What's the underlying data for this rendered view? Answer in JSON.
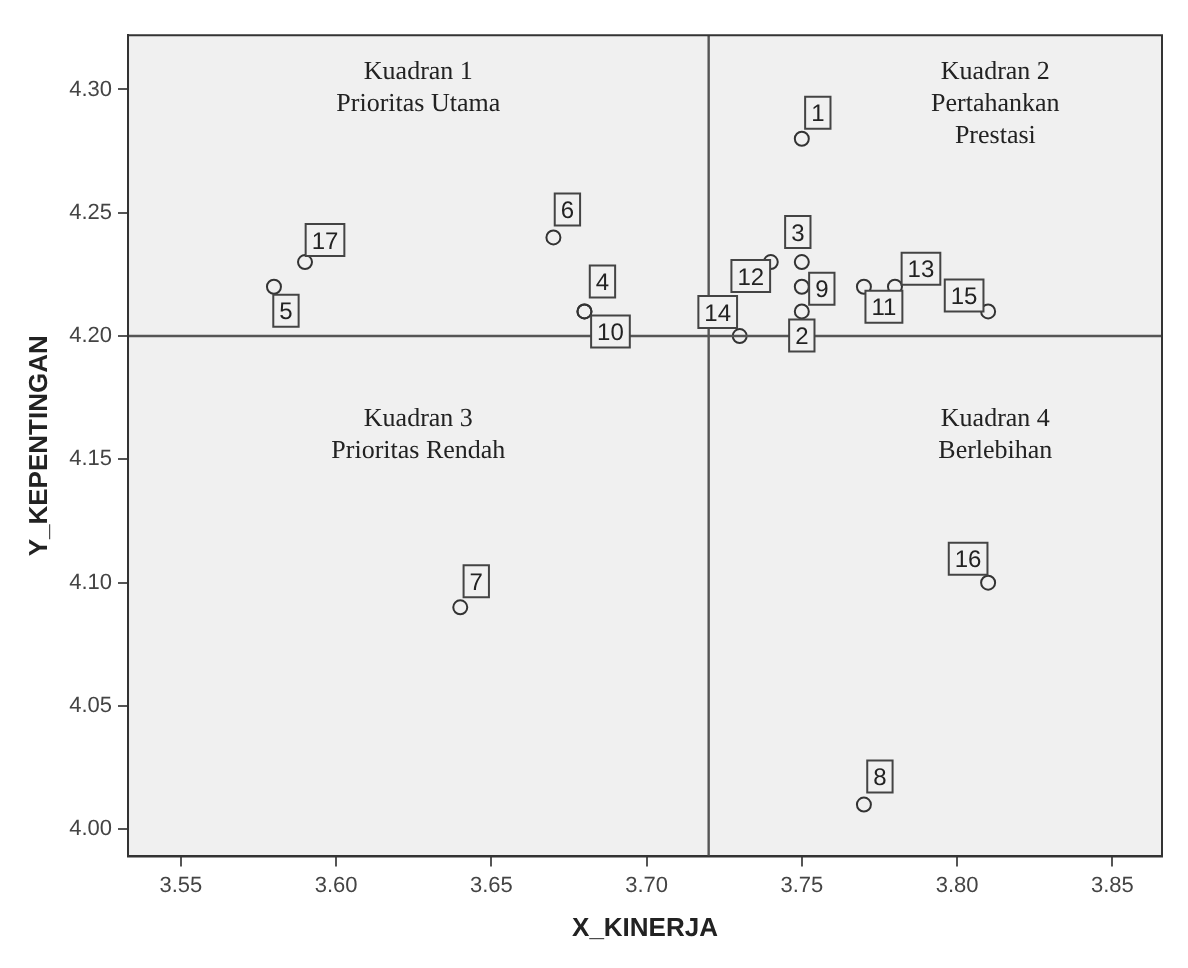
{
  "chart_data": {
    "type": "scatter",
    "xlabel": "X_KINERJA",
    "ylabel": "Y_KEPENTINGAN",
    "x": [
      3.75,
      3.75,
      3.75,
      3.68,
      3.58,
      3.67,
      3.64,
      3.77,
      3.75,
      3.68,
      3.77,
      3.74,
      3.78,
      3.73,
      3.81,
      3.81,
      3.59
    ],
    "values": [
      4.28,
      4.21,
      4.23,
      4.21,
      4.22,
      4.24,
      4.09,
      4.01,
      4.22,
      4.21,
      4.22,
      4.23,
      4.22,
      4.2,
      4.21,
      4.1,
      4.23
    ],
    "color": "#333333",
    "marker": "circle",
    "xlim": [
      3.533,
      3.866
    ],
    "xticks": [
      {
        "value": 3.55,
        "label": "3.55"
      },
      {
        "value": 3.6,
        "label": "3.60"
      },
      {
        "value": 3.65,
        "label": "3.65"
      },
      {
        "value": 3.7,
        "label": "3.70"
      },
      {
        "value": 3.75,
        "label": "3.75"
      },
      {
        "value": 3.8,
        "label": "3.80"
      },
      {
        "value": 3.85,
        "label": "3.85"
      }
    ],
    "ylim": [
      3.989,
      4.322
    ],
    "yticks": [
      {
        "value": 4.0,
        "label": "4.00"
      },
      {
        "value": 4.05,
        "label": "4.05"
      },
      {
        "value": 4.1,
        "label": "4.10"
      },
      {
        "value": 4.15,
        "label": "4.15"
      },
      {
        "value": 4.2,
        "label": "4.20"
      },
      {
        "value": 4.25,
        "label": "4.25"
      },
      {
        "value": 4.3,
        "label": "4.30"
      }
    ],
    "grid": false,
    "legend": false,
    "ref_lines": [
      {
        "axis": "x",
        "value": 3.72,
        "color": "#555555"
      },
      {
        "axis": "y",
        "value": 4.2,
        "color": "#555555"
      }
    ],
    "annotations": [
      "Kuadran 1\nPrioritas Utama",
      "Kuadran 2\nPertahankan\nPrestasi",
      "Kuadran 3\nPrioritas Rendah",
      "Kuadran 4\nBerlebihan",
      {
        "text": "1",
        "x": 3.75,
        "y": 4.28
      },
      {
        "text": "2",
        "x": 3.75,
        "y": 4.21
      },
      {
        "text": "3",
        "x": 3.75,
        "y": 4.23
      },
      {
        "text": "4",
        "x": 3.68,
        "y": 4.21
      },
      {
        "text": "5",
        "x": 3.58,
        "y": 4.22
      },
      {
        "text": "6",
        "x": 3.67,
        "y": 4.24
      },
      {
        "text": "7",
        "x": 3.64,
        "y": 4.09
      },
      {
        "text": "8",
        "x": 3.77,
        "y": 4.01
      },
      {
        "text": "9",
        "x": 3.75,
        "y": 4.22
      },
      {
        "text": "10",
        "x": 3.68,
        "y": 4.21
      },
      {
        "text": "11",
        "x": 3.77,
        "y": 4.22
      },
      {
        "text": "12",
        "x": 3.74,
        "y": 4.23
      },
      {
        "text": "13",
        "x": 3.78,
        "y": 4.22
      },
      {
        "text": "14",
        "x": 3.73,
        "y": 4.2
      },
      {
        "text": "15",
        "x": 3.81,
        "y": 4.21
      },
      {
        "text": "16",
        "x": 3.81,
        "y": 4.1
      },
      {
        "text": "17",
        "x": 3.59,
        "y": 4.23
      }
    ]
  }
}
